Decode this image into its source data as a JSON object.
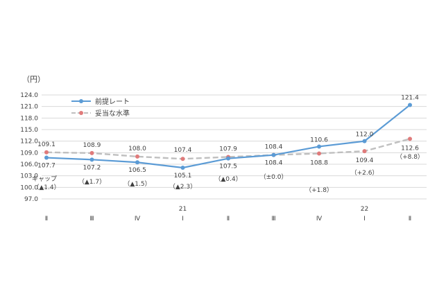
{
  "chart_data": {
    "type": "line",
    "unit_label": "（円）",
    "ylim": [
      97.0,
      124.0
    ],
    "y_ticks": [
      "124.0",
      "121.0",
      "118.0",
      "115.0",
      "112.0",
      "109.0",
      "106.0",
      "103.0",
      "100.0",
      "97.0"
    ],
    "y_tick_values": [
      124.0,
      121.0,
      118.0,
      115.0,
      112.0,
      109.0,
      106.0,
      103.0,
      100.0,
      97.0
    ],
    "categories": [
      "Ⅱ",
      "Ⅲ",
      "Ⅳ",
      "Ⅰ",
      "Ⅱ",
      "Ⅲ",
      "Ⅳ",
      "Ⅰ",
      "Ⅱ"
    ],
    "year_labels": [
      {
        "index": 3,
        "label": "21"
      },
      {
        "index": 7,
        "label": "22"
      }
    ],
    "grid": true,
    "legend_position": "top-left",
    "series": [
      {
        "name": "前提レート",
        "color": "#5b9bd5",
        "style": "solid",
        "values": [
          107.7,
          107.2,
          106.5,
          105.1,
          107.5,
          108.4,
          110.6,
          112.0,
          121.4
        ],
        "labels": [
          "107.7",
          "107.2",
          "106.5",
          "105.1",
          "107.5",
          "108.4",
          "110.6",
          "112.0",
          "121.4"
        ]
      },
      {
        "name": "妥当な水準",
        "color": "#bfbfbf",
        "marker_color": "#e07b7b",
        "style": "dashed",
        "values": [
          109.1,
          108.9,
          108.0,
          107.4,
          107.9,
          108.4,
          108.8,
          109.4,
          112.6
        ],
        "labels": [
          "109.1",
          "108.9",
          "108.0",
          "107.4",
          "107.9",
          "108.4",
          "108.8",
          "109.4",
          "112.6"
        ]
      }
    ],
    "gap_title": "ギャップ",
    "gap_labels": [
      "（▲1.4）",
      "（▲1.7）",
      "（▲1.5）",
      "（▲2.3）",
      "（▲0.4）",
      "（±0.0）",
      "（+1.8）",
      "（+2.6）",
      "（+8.8）"
    ]
  }
}
